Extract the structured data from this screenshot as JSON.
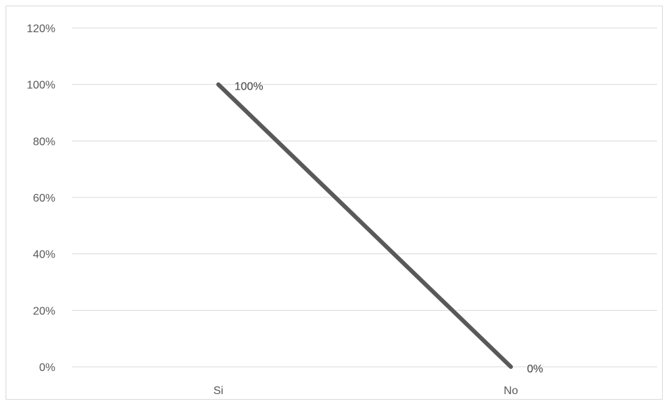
{
  "chart_data": {
    "type": "line",
    "categories": [
      "Si",
      "No"
    ],
    "series": [
      {
        "values": [
          100,
          0
        ],
        "data_labels": [
          "100%",
          "0%"
        ],
        "color": "#595959"
      }
    ],
    "yticks": [
      "0%",
      "20%",
      "40%",
      "60%",
      "80%",
      "100%",
      "120%"
    ],
    "ylim": [
      0,
      120
    ],
    "grid": true,
    "legend": "none",
    "gridline_color": "#d9d9d9"
  }
}
